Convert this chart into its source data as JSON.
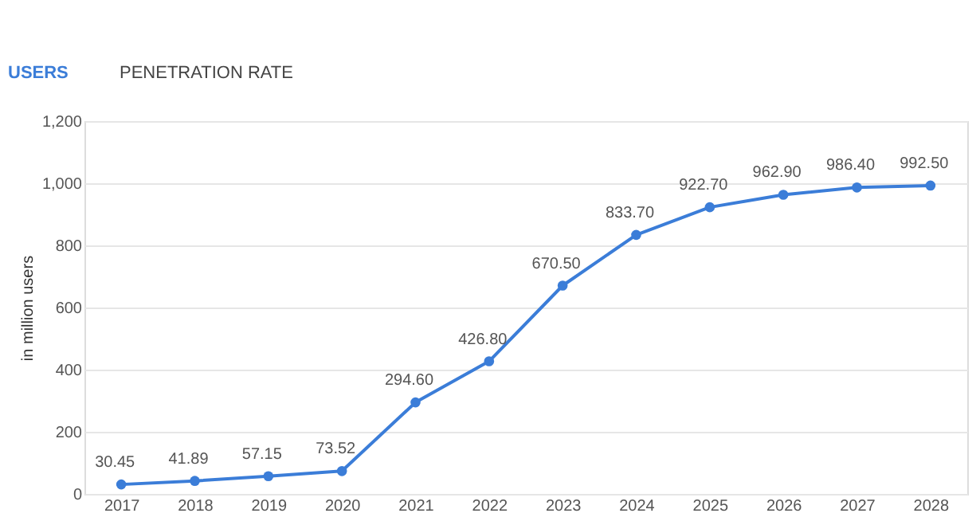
{
  "chart_data": {
    "type": "line",
    "annotations": [
      "USERS",
      "PENETRATION RATE"
    ],
    "ylabel": "in million users",
    "categories": [
      "2017",
      "2018",
      "2019",
      "2020",
      "2021",
      "2022",
      "2023",
      "2024",
      "2025",
      "2026",
      "2027",
      "2028"
    ],
    "series": [
      {
        "color": "#3b7dd8",
        "values": [
          30.45,
          41.89,
          57.15,
          73.52,
          294.6,
          426.8,
          670.5,
          833.7,
          922.7,
          962.9,
          986.4,
          992.5
        ],
        "value_labels": [
          "30.45",
          "41.89",
          "57.15",
          "73.52",
          "294.60",
          "426.80",
          "670.50",
          "833.70",
          "922.70",
          "962.90",
          "986.40",
          "992.50"
        ]
      }
    ],
    "ylim": [
      0,
      1200
    ],
    "yticks": [
      0,
      200,
      400,
      600,
      800,
      {
        "value": 1000,
        "label": "1,000"
      },
      {
        "value": 1200,
        "label": "1,200"
      }
    ],
    "grid": "y",
    "marker": "circle",
    "line_style": "solid"
  }
}
